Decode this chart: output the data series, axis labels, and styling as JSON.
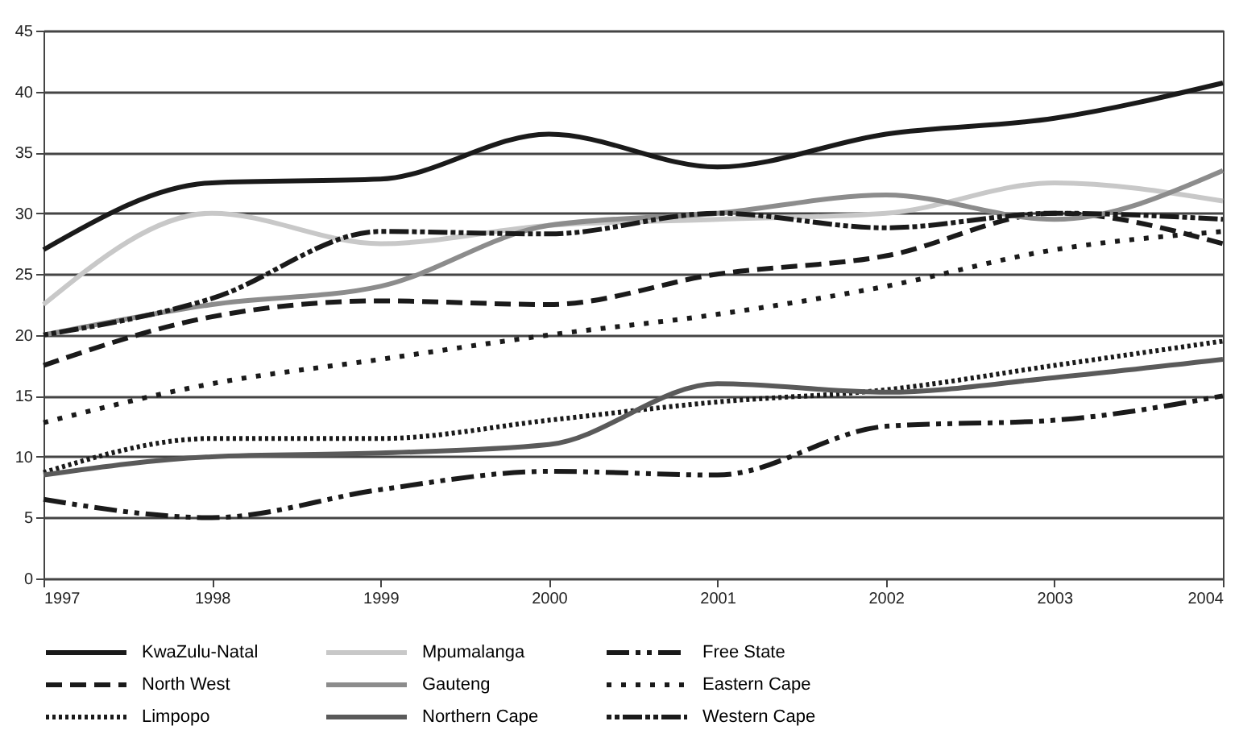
{
  "chart_data": {
    "type": "line",
    "x": [
      1997,
      1998,
      1999,
      2000,
      2001,
      2002,
      2003,
      2004
    ],
    "series": [
      {
        "name": "KwaZulu-Natal",
        "color": "#1a1a1a",
        "line_style": "solid",
        "values": [
          27,
          32.5,
          32.8,
          36.5,
          33.8,
          36.5,
          37.8,
          40.7
        ]
      },
      {
        "name": "Mpumalanga",
        "color": "#c8c8c8",
        "line_style": "solid",
        "values": [
          22.5,
          30,
          27.5,
          29,
          29.5,
          30,
          32.5,
          31
        ]
      },
      {
        "name": "Free State",
        "color": "#1a1a1a",
        "line_style": "dashdot",
        "values": [
          6.5,
          5,
          7.3,
          8.8,
          8.5,
          12.5,
          13,
          15
        ]
      },
      {
        "name": "North West",
        "color": "#1a1a1a",
        "line_style": "dashed",
        "values": [
          17.5,
          21.5,
          22.8,
          22.5,
          25,
          26.5,
          30,
          27.5
        ]
      },
      {
        "name": "Gauteng",
        "color": "#8c8c8c",
        "line_style": "solid",
        "values": [
          20,
          22.5,
          24,
          29,
          30,
          31.5,
          29.5,
          33.5
        ]
      },
      {
        "name": "Eastern Cape",
        "color": "#1a1a1a",
        "line_style": "dotted",
        "values": [
          12.8,
          16,
          18,
          20,
          21.7,
          24,
          27,
          28.5
        ]
      },
      {
        "name": "Limpopo",
        "color": "#1a1a1a",
        "line_style": "densedotted",
        "values": [
          8.7,
          11.5,
          11.5,
          13,
          14.5,
          15.5,
          17.5,
          19.5
        ]
      },
      {
        "name": "Northern Cape",
        "color": "#5a5a5a",
        "line_style": "solid",
        "values": [
          8.5,
          10,
          10.3,
          11,
          16,
          15.3,
          16.5,
          18
        ]
      },
      {
        "name": "Western Cape",
        "color": "#1a1a1a",
        "line_style": "dashdotheavy",
        "values": [
          20,
          23,
          28.5,
          28.3,
          30,
          28.8,
          30,
          29.5
        ]
      }
    ],
    "xlim": [
      1997,
      2004
    ],
    "xticks": [
      1997,
      1998,
      1999,
      2000,
      2001,
      2002,
      2003,
      2004
    ],
    "ylim": [
      0,
      45
    ],
    "yticks": [
      0,
      5,
      10,
      15,
      20,
      25,
      30,
      35,
      40,
      45
    ],
    "grid": "y",
    "legend": "bottom",
    "marker": "none"
  }
}
